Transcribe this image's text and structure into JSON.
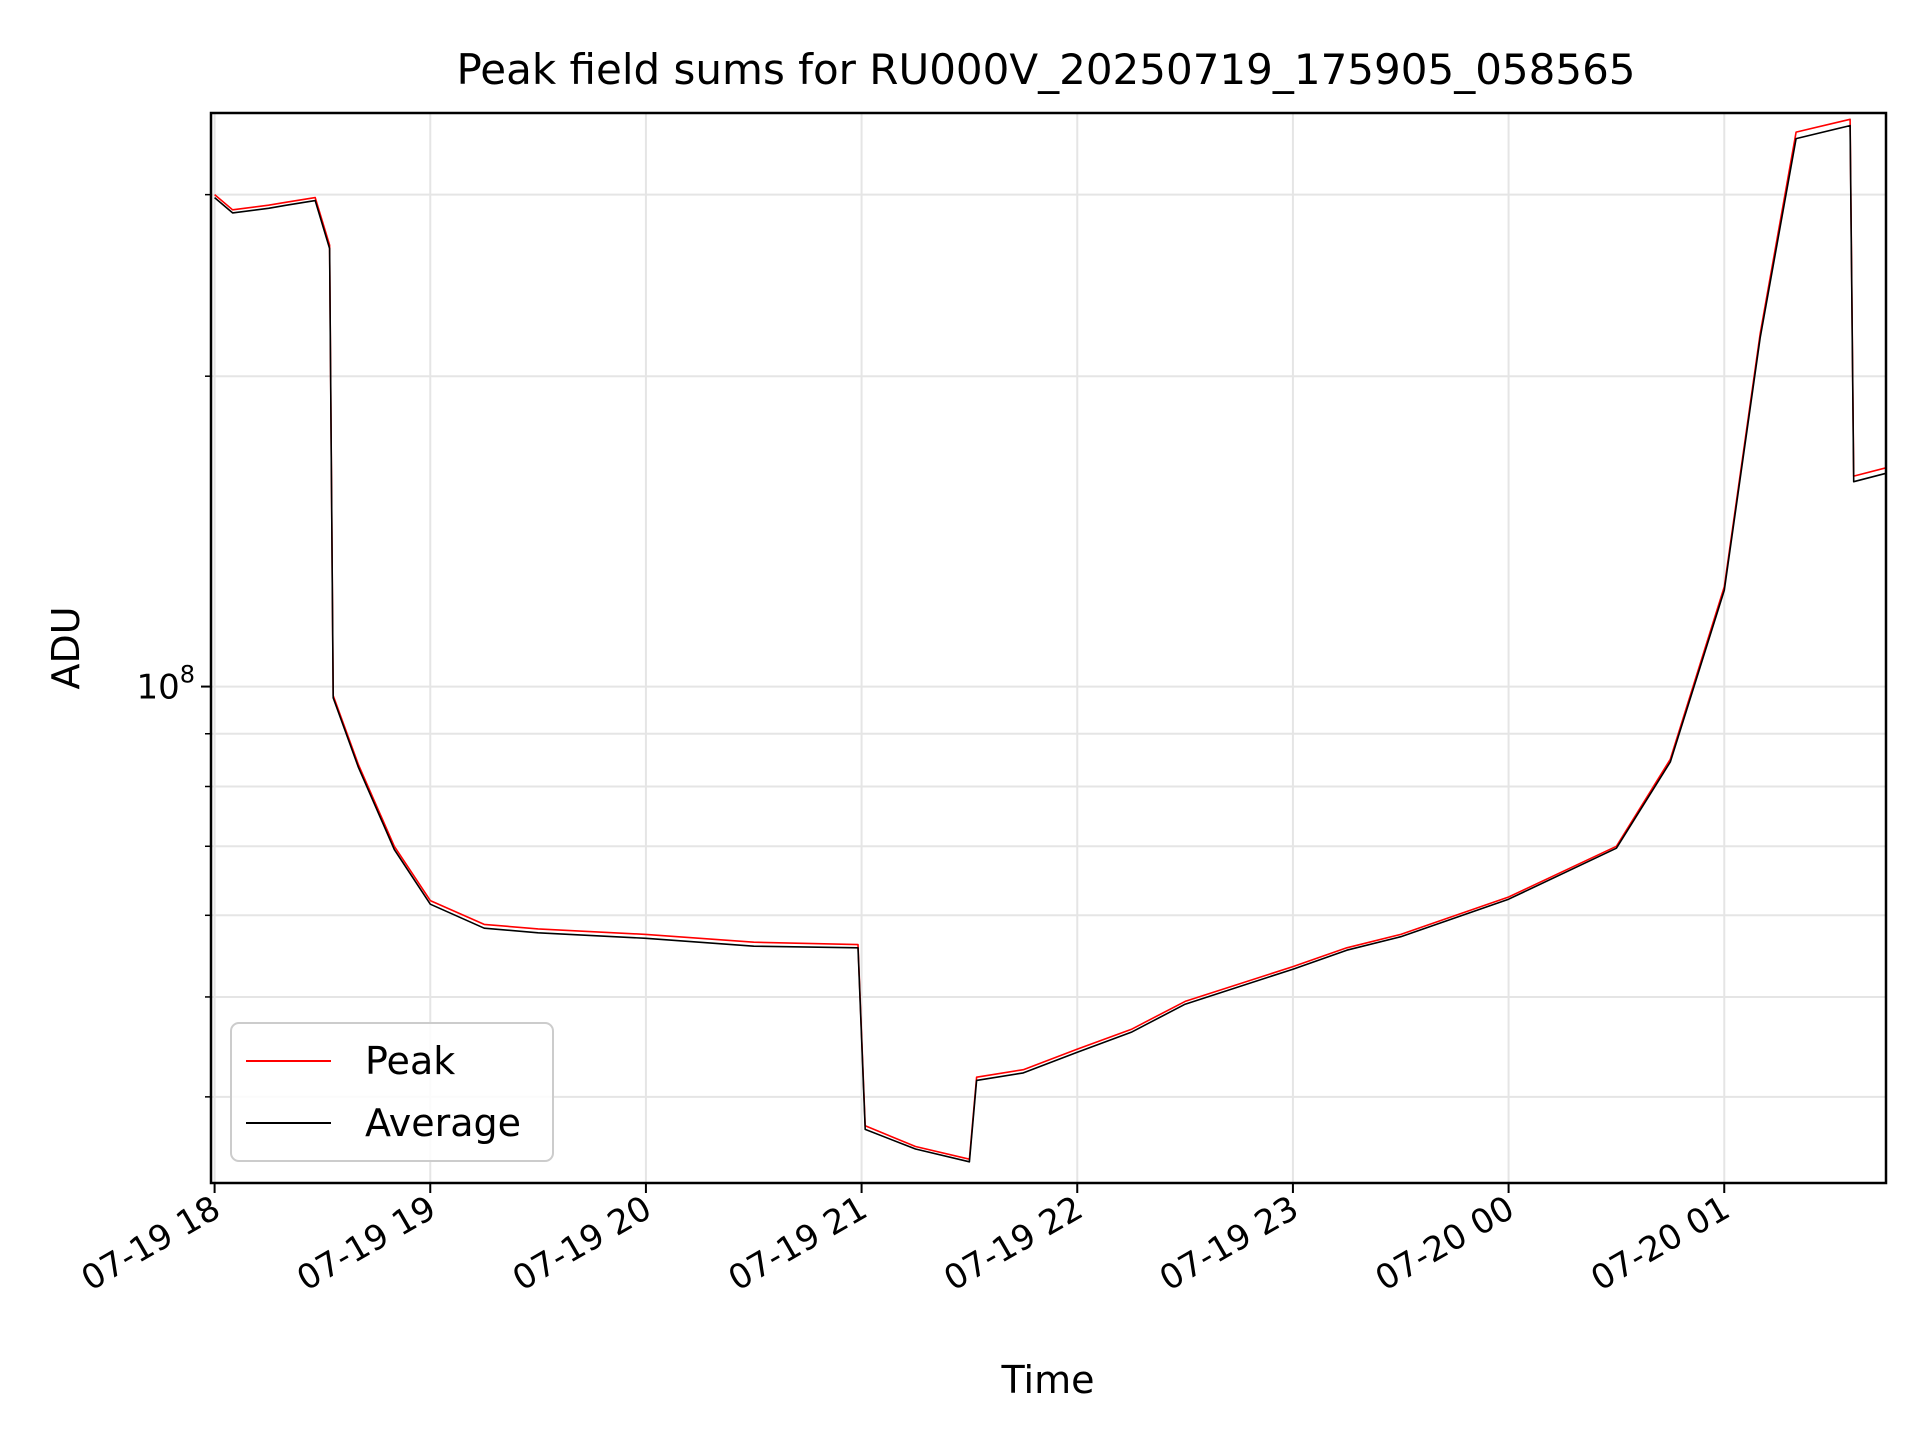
{
  "chart_data": {
    "type": "line",
    "title": "Peak field sums for RU000V_20250719_175905_058565",
    "xlabel": "Time",
    "ylabel": "ADU",
    "xscale": "time",
    "yscale": "log",
    "xlim": [
      "2025-07-19 17:59",
      "2025-07-20 01:45"
    ],
    "ylim": [
      33000000,
      360000000
    ],
    "x_ticks": [
      {
        "at": "2025-07-19 18:00",
        "label": "07-19 18"
      },
      {
        "at": "2025-07-19 19:00",
        "label": "07-19 19"
      },
      {
        "at": "2025-07-19 20:00",
        "label": "07-19 20"
      },
      {
        "at": "2025-07-19 21:00",
        "label": "07-19 21"
      },
      {
        "at": "2025-07-19 22:00",
        "label": "07-19 22"
      },
      {
        "at": "2025-07-19 23:00",
        "label": "07-19 23"
      },
      {
        "at": "2025-07-20 00:00",
        "label": "07-20 00"
      },
      {
        "at": "2025-07-20 01:00",
        "label": "07-20 01"
      }
    ],
    "y_ticks": [
      {
        "value": 100000000,
        "base": "10",
        "exp": "8"
      }
    ],
    "y_minor_ticks": [
      40000000,
      50000000,
      60000000,
      70000000,
      80000000,
      90000000,
      200000000,
      300000000
    ],
    "grid": true,
    "legend": {
      "placement": "lower-left",
      "entries": [
        "Peak",
        "Average"
      ]
    },
    "series": [
      {
        "name": "Peak",
        "color": "#ff0000",
        "points": [
          [
            "2025-07-19 18:00",
            300000000
          ],
          [
            "2025-07-19 18:05",
            290000000
          ],
          [
            "2025-07-19 18:15",
            293000000
          ],
          [
            "2025-07-19 18:20",
            295000000
          ],
          [
            "2025-07-19 18:28",
            298000000
          ],
          [
            "2025-07-19 18:32",
            268000000
          ],
          [
            "2025-07-19 18:33",
            98000000
          ],
          [
            "2025-07-19 18:40",
            84000000
          ],
          [
            "2025-07-19 18:50",
            70000000
          ],
          [
            "2025-07-19 19:00",
            62000000
          ],
          [
            "2025-07-19 19:15",
            58800000
          ],
          [
            "2025-07-19 19:30",
            58200000
          ],
          [
            "2025-07-19 20:00",
            57500000
          ],
          [
            "2025-07-19 20:30",
            56500000
          ],
          [
            "2025-07-19 20:59",
            56200000
          ],
          [
            "2025-07-19 21:01",
            37500000
          ],
          [
            "2025-07-19 21:15",
            35800000
          ],
          [
            "2025-07-19 21:30",
            34800000
          ],
          [
            "2025-07-19 21:32",
            41800000
          ],
          [
            "2025-07-19 21:45",
            42500000
          ],
          [
            "2025-07-19 22:00",
            44500000
          ],
          [
            "2025-07-19 22:15",
            46500000
          ],
          [
            "2025-07-19 22:30",
            49500000
          ],
          [
            "2025-07-19 23:00",
            53500000
          ],
          [
            "2025-07-19 23:15",
            55800000
          ],
          [
            "2025-07-19 23:30",
            57500000
          ],
          [
            "2025-07-20 00:00",
            62500000
          ],
          [
            "2025-07-20 00:30",
            70000000
          ],
          [
            "2025-07-20 00:45",
            85000000
          ],
          [
            "2025-07-20 01:00",
            125000000
          ],
          [
            "2025-07-20 01:10",
            220000000
          ],
          [
            "2025-07-20 01:20",
            345000000
          ],
          [
            "2025-07-20 01:35",
            355000000
          ],
          [
            "2025-07-20 01:36",
            160000000
          ],
          [
            "2025-07-20 01:45",
            163000000
          ]
        ]
      },
      {
        "name": "Average",
        "color": "#000000",
        "points": [
          [
            "2025-07-19 18:00",
            298000000
          ],
          [
            "2025-07-19 18:05",
            288000000
          ],
          [
            "2025-07-19 18:15",
            291000000
          ],
          [
            "2025-07-19 18:20",
            293000000
          ],
          [
            "2025-07-19 18:28",
            296000000
          ],
          [
            "2025-07-19 18:32",
            266000000
          ],
          [
            "2025-07-19 18:33",
            97500000
          ],
          [
            "2025-07-19 18:40",
            83500000
          ],
          [
            "2025-07-19 18:50",
            69500000
          ],
          [
            "2025-07-19 19:00",
            61500000
          ],
          [
            "2025-07-19 19:15",
            58300000
          ],
          [
            "2025-07-19 19:30",
            57700000
          ],
          [
            "2025-07-19 20:00",
            57000000
          ],
          [
            "2025-07-19 20:30",
            56000000
          ],
          [
            "2025-07-19 20:59",
            55800000
          ],
          [
            "2025-07-19 21:01",
            37200000
          ],
          [
            "2025-07-19 21:15",
            35600000
          ],
          [
            "2025-07-19 21:30",
            34600000
          ],
          [
            "2025-07-19 21:32",
            41500000
          ],
          [
            "2025-07-19 21:45",
            42200000
          ],
          [
            "2025-07-19 22:00",
            44200000
          ],
          [
            "2025-07-19 22:15",
            46200000
          ],
          [
            "2025-07-19 22:30",
            49200000
          ],
          [
            "2025-07-19 23:00",
            53200000
          ],
          [
            "2025-07-19 23:15",
            55500000
          ],
          [
            "2025-07-19 23:30",
            57200000
          ],
          [
            "2025-07-20 00:00",
            62200000
          ],
          [
            "2025-07-20 00:30",
            69700000
          ],
          [
            "2025-07-20 00:45",
            84500000
          ],
          [
            "2025-07-20 01:00",
            124000000
          ],
          [
            "2025-07-20 01:10",
            218000000
          ],
          [
            "2025-07-20 01:20",
            340000000
          ],
          [
            "2025-07-20 01:35",
            350000000
          ],
          [
            "2025-07-20 01:36",
            158000000
          ],
          [
            "2025-07-20 01:45",
            161000000
          ]
        ]
      }
    ]
  }
}
